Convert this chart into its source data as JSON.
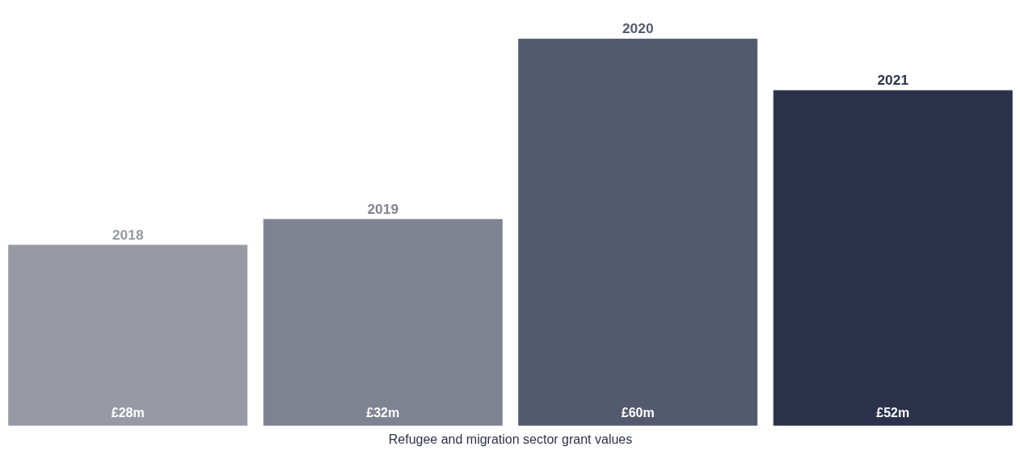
{
  "chart_data": {
    "type": "bar",
    "xlabel": "Refugee and migration sector grant values",
    "categories": [
      "2018",
      "2019",
      "2020",
      "2021"
    ],
    "values": [
      28,
      32,
      60,
      52
    ],
    "colors": [
      "#979aa5",
      "#7f8391",
      "#545a6e",
      "#2c324b"
    ],
    "value_labels": [
      "£28m",
      "£32m",
      "£60m",
      "£52m"
    ],
    "grid": false
  }
}
